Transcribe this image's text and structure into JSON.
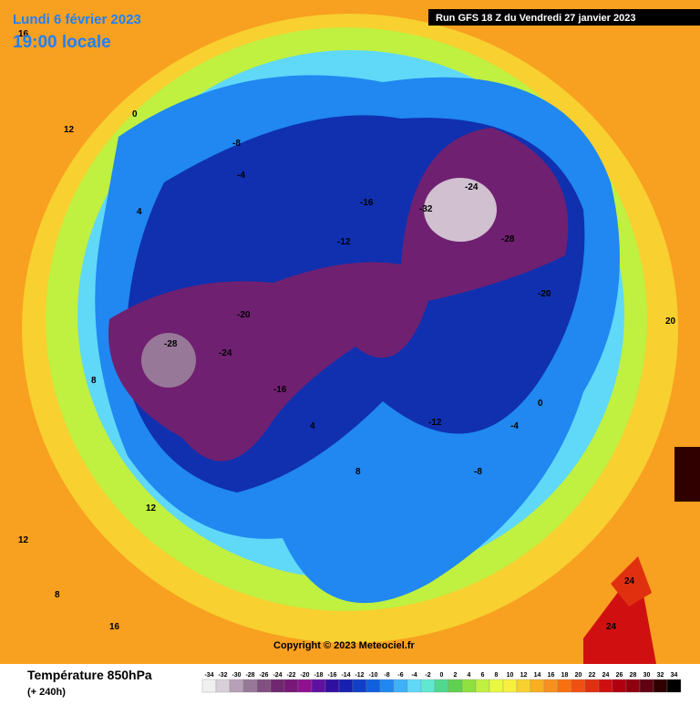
{
  "header": {
    "date": "Lundi 6 février 2023",
    "local_time": "19:00 locale",
    "run": "Run GFS 18 Z du Vendredi 27 janvier 2023"
  },
  "footer": {
    "title": "Température 850hPa",
    "lead": "(+ 240h)",
    "copyright": "Copyright © 2023 Meteociel.fr"
  },
  "legend": {
    "ticks": [
      -34,
      -32,
      -30,
      -28,
      -26,
      -24,
      -22,
      -20,
      -18,
      -16,
      -14,
      -12,
      -10,
      -8,
      -6,
      -4,
      -2,
      0,
      2,
      4,
      6,
      8,
      10,
      12,
      14,
      16,
      18,
      20,
      22,
      24,
      26,
      28,
      30,
      32,
      34
    ],
    "colors": [
      "#f0f0f0",
      "#d8d0d8",
      "#b8a0b8",
      "#987898",
      "#805080",
      "#702870",
      "#781878",
      "#901090",
      "#6010a0",
      "#3010a0",
      "#1820b0",
      "#1040c8",
      "#1060e0",
      "#2088f0",
      "#40b0f8",
      "#60d8f8",
      "#60e8d0",
      "#50d890",
      "#60d050",
      "#90e040",
      "#c0f040",
      "#e8f840",
      "#f8f040",
      "#f8d030",
      "#f8b020",
      "#f89020",
      "#f87010",
      "#f05010",
      "#e03010",
      "#d01010",
      "#b00010",
      "#900010",
      "#600010",
      "#300000",
      "#000000"
    ]
  },
  "map_labels": [
    "16",
    "12",
    "8",
    "4",
    "0",
    "-4",
    "-8",
    "-12",
    "-16",
    "-20",
    "-24",
    "-28",
    "-32",
    "-28",
    "-20",
    "-24",
    "-16",
    "-12",
    "-8",
    "-4",
    "0",
    "4",
    "8",
    "12",
    "16",
    "20",
    "24",
    "24",
    "12",
    "8"
  ]
}
